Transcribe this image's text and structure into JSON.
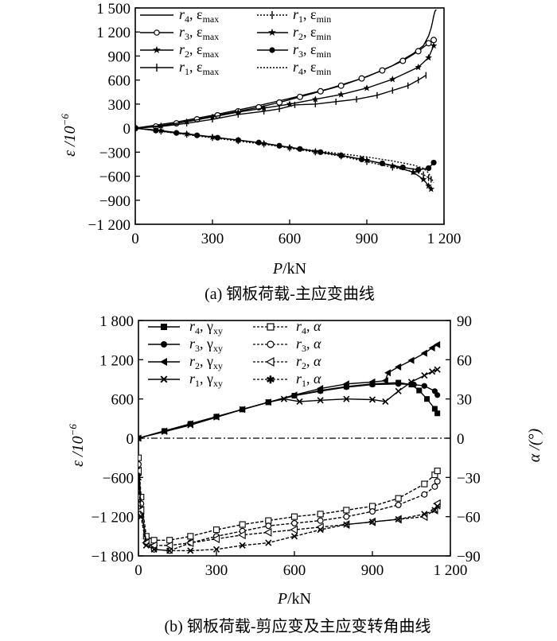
{
  "figure": {
    "caption_a": "(a) 钢板荷载-主应变曲线",
    "caption_b": "(b) 钢板荷载-剪应变及主应变转角曲线"
  },
  "chart_data": [
    {
      "type": "line",
      "xlabel": "P/kN",
      "ylabel": "ε/10⁻⁶",
      "xlim": [
        0,
        1200
      ],
      "ylim": [
        -1200,
        1500
      ],
      "xticks": [
        "0",
        "300",
        "600",
        "900",
        "1 200"
      ],
      "yticks": [
        "1 500",
        "1 200",
        "900",
        "600",
        "300",
        "0",
        "−300",
        "−600",
        "−900",
        "−1 200"
      ],
      "legend_position": "top-left",
      "series": [
        {
          "name": "r4, εmax",
          "marker": "none",
          "dash": "solid",
          "x": [
            0,
            150,
            300,
            450,
            600,
            750,
            900,
            1000,
            1080,
            1120,
            1140,
            1150,
            1155,
            1160,
            1165,
            1170
          ],
          "y": [
            0,
            70,
            160,
            260,
            370,
            490,
            640,
            780,
            930,
            1030,
            1150,
            1250,
            1320,
            1400,
            1460,
            1480
          ]
        },
        {
          "name": "r3, εmax",
          "marker": "circle",
          "dash": "solid",
          "x": [
            0,
            80,
            160,
            240,
            320,
            400,
            480,
            560,
            640,
            720,
            800,
            880,
            960,
            1040,
            1100,
            1140,
            1160
          ],
          "y": [
            0,
            20,
            60,
            110,
            160,
            210,
            260,
            320,
            390,
            460,
            530,
            620,
            720,
            840,
            960,
            1060,
            1100
          ]
        },
        {
          "name": "r2, εmax",
          "marker": "star",
          "dash": "solid",
          "x": [
            0,
            100,
            200,
            300,
            400,
            500,
            600,
            700,
            800,
            900,
            1000,
            1100,
            1140,
            1160
          ],
          "y": [
            0,
            30,
            80,
            140,
            200,
            250,
            300,
            360,
            420,
            500,
            610,
            760,
            880,
            1030
          ]
        },
        {
          "name": "r1, εmax",
          "marker": "plus",
          "dash": "solid",
          "x": [
            0,
            100,
            200,
            300,
            400,
            500,
            560,
            620,
            700,
            780,
            860,
            940,
            1000,
            1060,
            1100,
            1130
          ],
          "y": [
            0,
            20,
            60,
            110,
            170,
            210,
            240,
            290,
            300,
            330,
            360,
            410,
            470,
            530,
            600,
            660
          ]
        },
        {
          "name": "r1, εmin",
          "marker": "plus",
          "dash": "dotted",
          "x": [
            0,
            100,
            200,
            300,
            400,
            500,
            600,
            700,
            800,
            900,
            1000,
            1080,
            1120,
            1140,
            1150
          ],
          "y": [
            0,
            -40,
            -80,
            -120,
            -160,
            -200,
            -250,
            -300,
            -350,
            -420,
            -490,
            -540,
            -580,
            -620,
            -640
          ]
        },
        {
          "name": "r2, εmin",
          "marker": "star",
          "dash": "solid",
          "x": [
            0,
            100,
            200,
            300,
            400,
            500,
            600,
            700,
            800,
            900,
            1000,
            1080,
            1120,
            1140,
            1150
          ],
          "y": [
            0,
            -30,
            -70,
            -110,
            -150,
            -190,
            -240,
            -290,
            -340,
            -400,
            -470,
            -550,
            -640,
            -720,
            -760
          ]
        },
        {
          "name": "r3, εmin",
          "marker": "dot",
          "dash": "solid",
          "x": [
            0,
            80,
            160,
            240,
            320,
            400,
            480,
            560,
            640,
            720,
            800,
            880,
            960,
            1040,
            1100,
            1140,
            1160
          ],
          "y": [
            0,
            -30,
            -60,
            -90,
            -120,
            -150,
            -180,
            -220,
            -260,
            -300,
            -340,
            -390,
            -440,
            -490,
            -520,
            -500,
            -430
          ]
        },
        {
          "name": "r4, εmin",
          "marker": "none",
          "dash": "dotted",
          "x": [
            0,
            150,
            300,
            450,
            600,
            750,
            900,
            1000,
            1080,
            1120,
            1140,
            1150,
            1160
          ],
          "y": [
            0,
            -60,
            -120,
            -180,
            -240,
            -300,
            -360,
            -410,
            -460,
            -500,
            -560,
            -620,
            -680
          ]
        }
      ]
    },
    {
      "type": "line",
      "xlabel": "P/kN",
      "ylabel": "ε/10⁻⁶",
      "y2label": "α/(°)",
      "xlim": [
        0,
        1200
      ],
      "ylim": [
        -1800,
        1800
      ],
      "y2lim": [
        -90,
        90
      ],
      "xticks": [
        "0",
        "300",
        "600",
        "900",
        "1 200"
      ],
      "yticks": [
        "1 800",
        "1 200",
        "600",
        "0",
        "−600",
        "−1 200",
        "−1 800"
      ],
      "y2ticks": [
        "90",
        "60",
        "30",
        "0",
        "−30",
        "−60",
        "−90"
      ],
      "legend_position": "top-left",
      "series": [
        {
          "name": "r4, γxy",
          "marker": "square",
          "dash": "solid",
          "axis": "left",
          "x": [
            0,
            100,
            200,
            300,
            400,
            500,
            600,
            700,
            800,
            900,
            1000,
            1050,
            1080,
            1110,
            1140,
            1150
          ],
          "y": [
            0,
            110,
            220,
            330,
            440,
            550,
            650,
            730,
            790,
            830,
            850,
            820,
            730,
            600,
            450,
            380
          ]
        },
        {
          "name": "r3, γxy",
          "marker": "dot",
          "dash": "solid",
          "axis": "left",
          "x": [
            0,
            100,
            200,
            300,
            400,
            500,
            600,
            700,
            800,
            900,
            1000,
            1060,
            1100,
            1140,
            1150
          ],
          "y": [
            0,
            110,
            220,
            330,
            440,
            550,
            650,
            720,
            780,
            820,
            830,
            820,
            800,
            720,
            660
          ]
        },
        {
          "name": "r2, γxy",
          "marker": "triangle-left",
          "dash": "solid",
          "axis": "left",
          "x": [
            0,
            100,
            200,
            300,
            400,
            500,
            600,
            700,
            800,
            900,
            950,
            960,
            1000,
            1050,
            1100,
            1130,
            1150
          ],
          "y": [
            0,
            110,
            220,
            330,
            440,
            550,
            660,
            760,
            830,
            860,
            880,
            1000,
            1090,
            1190,
            1300,
            1380,
            1430
          ]
        },
        {
          "name": "r1, γxy",
          "marker": "cross",
          "dash": "solid",
          "axis": "left",
          "x": [
            0,
            100,
            200,
            300,
            400,
            500,
            560,
            620,
            700,
            800,
            900,
            950,
            1000,
            1050,
            1100,
            1130,
            1150
          ],
          "y": [
            0,
            100,
            200,
            320,
            440,
            550,
            600,
            560,
            580,
            600,
            590,
            560,
            720,
            860,
            960,
            1020,
            1050
          ]
        },
        {
          "name": "r4, α",
          "marker": "square-open",
          "dash": "dashed",
          "axis": "right",
          "x": [
            0,
            10,
            30,
            60,
            120,
            200,
            300,
            400,
            500,
            600,
            700,
            800,
            900,
            1000,
            1100,
            1140,
            1150
          ],
          "y": [
            -15,
            -45,
            -75,
            -78,
            -78,
            -75,
            -70,
            -66,
            -63,
            -60,
            -58,
            -55,
            -52,
            -46,
            -35,
            -28,
            -25
          ]
        },
        {
          "name": "r3, α",
          "marker": "circle-open",
          "dash": "dashed",
          "axis": "right",
          "x": [
            0,
            10,
            30,
            60,
            120,
            200,
            300,
            400,
            500,
            600,
            700,
            800,
            900,
            1000,
            1100,
            1140,
            1150
          ],
          "y": [
            -20,
            -50,
            -80,
            -85,
            -86,
            -80,
            -75,
            -71,
            -67,
            -65,
            -63,
            -60,
            -56,
            -51,
            -43,
            -37,
            -33
          ]
        },
        {
          "name": "r2, α",
          "marker": "triangle-left-open",
          "dash": "dashed",
          "axis": "right",
          "x": [
            0,
            10,
            30,
            60,
            120,
            200,
            300,
            400,
            500,
            600,
            700,
            800,
            900,
            1000,
            1100,
            1140,
            1150
          ],
          "y": [
            -25,
            -55,
            -80,
            -82,
            -82,
            -80,
            -77,
            -74,
            -72,
            -70,
            -68,
            -66,
            -64,
            -62,
            -60,
            -55,
            -50
          ]
        },
        {
          "name": "r1, α",
          "marker": "cross",
          "dash": "dashed",
          "axis": "right",
          "x": [
            0,
            10,
            30,
            60,
            120,
            200,
            300,
            400,
            500,
            600,
            700,
            800,
            900,
            1000,
            1100,
            1140,
            1150
          ],
          "y": [
            -30,
            -60,
            -82,
            -85,
            -86,
            -86,
            -85,
            -82,
            -80,
            -75,
            -70,
            -66,
            -64,
            -62,
            -58,
            -55,
            -52
          ]
        }
      ]
    }
  ]
}
